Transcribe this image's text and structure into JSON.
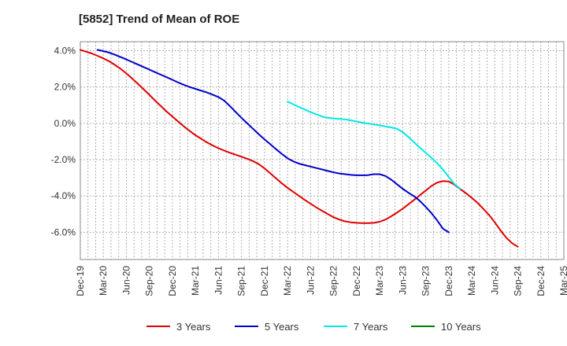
{
  "chart_data": {
    "type": "line",
    "title": "[5852]  Trend of Mean of ROE",
    "xlabel": "",
    "ylabel": "",
    "x_tick_labels": [
      "Dec-19",
      "Mar-20",
      "Jun-20",
      "Sep-20",
      "Dec-20",
      "Mar-21",
      "Jun-21",
      "Sep-21",
      "Dec-21",
      "Mar-22",
      "Jun-22",
      "Sep-22",
      "Dec-22",
      "Mar-23",
      "Jun-23",
      "Sep-23",
      "Dec-23",
      "Mar-24",
      "Jun-24",
      "Sep-24",
      "Dec-24",
      "Mar-25"
    ],
    "y_tick_labels": [
      "4.0%",
      "2.0%",
      "0.0%",
      "-2.0%",
      "-4.0%",
      "-6.0%"
    ],
    "y_tick_values": [
      4,
      2,
      0,
      -2,
      -4,
      -6
    ],
    "ylim": [
      -7.5,
      4.5
    ],
    "grid": true,
    "legend_position": "bottom",
    "series": [
      {
        "name": "3 Years",
        "color": "#e00000",
        "values": [
          4.05,
          3.95,
          3.85,
          3.72,
          3.58,
          3.42,
          3.22,
          3.0,
          2.75,
          2.47,
          2.18,
          1.88,
          1.57,
          1.25,
          0.95,
          0.65,
          0.37,
          0.1,
          -0.17,
          -0.42,
          -0.65,
          -0.85,
          -1.05,
          -1.22,
          -1.37,
          -1.5,
          -1.62,
          -1.73,
          -1.84,
          -1.95,
          -2.08,
          -2.25,
          -2.48,
          -2.75,
          -3.03,
          -3.3,
          -3.55,
          -3.78,
          -4.0,
          -4.22,
          -4.43,
          -4.63,
          -4.82,
          -5.0,
          -5.17,
          -5.3,
          -5.4,
          -5.45,
          -5.48,
          -5.5,
          -5.5,
          -5.48,
          -5.42,
          -5.3,
          -5.12,
          -4.92,
          -4.7,
          -4.46,
          -4.21,
          -3.95,
          -3.7,
          -3.45,
          -3.26,
          -3.18,
          -3.2,
          -3.38,
          -3.62,
          -3.85,
          -4.1,
          -4.38,
          -4.7,
          -5.05,
          -5.45,
          -5.9,
          -6.3,
          -6.6,
          -6.8
        ]
      },
      {
        "name": "5 Years",
        "color": "#0000cc",
        "values": [
          null,
          null,
          null,
          4.05,
          3.98,
          3.9,
          3.78,
          3.65,
          3.52,
          3.38,
          3.24,
          3.1,
          2.96,
          2.82,
          2.68,
          2.54,
          2.4,
          2.25,
          2.12,
          2.0,
          1.9,
          1.8,
          1.7,
          1.58,
          1.45,
          1.25,
          0.95,
          0.62,
          0.3,
          0.0,
          -0.3,
          -0.6,
          -0.88,
          -1.15,
          -1.42,
          -1.68,
          -1.92,
          -2.1,
          -2.22,
          -2.3,
          -2.38,
          -2.46,
          -2.54,
          -2.62,
          -2.7,
          -2.76,
          -2.8,
          -2.84,
          -2.86,
          -2.86,
          -2.85,
          -2.8,
          -2.8,
          -2.9,
          -3.1,
          -3.35,
          -3.6,
          -3.82,
          -4.02,
          -4.28,
          -4.6,
          -4.95,
          -5.35,
          -5.8,
          -6.0
        ]
      },
      {
        "name": "7 Years",
        "color": "#00e8e8",
        "values": [
          null,
          null,
          null,
          null,
          null,
          null,
          null,
          null,
          null,
          null,
          null,
          null,
          null,
          null,
          null,
          null,
          null,
          null,
          null,
          null,
          null,
          null,
          null,
          null,
          null,
          null,
          null,
          null,
          null,
          null,
          null,
          null,
          null,
          null,
          null,
          null,
          1.2,
          1.05,
          0.9,
          0.76,
          0.62,
          0.5,
          0.38,
          0.3,
          0.27,
          0.25,
          0.22,
          0.17,
          0.1,
          0.04,
          -0.01,
          -0.06,
          -0.11,
          -0.17,
          -0.22,
          -0.3,
          -0.48,
          -0.75,
          -1.05,
          -1.35,
          -1.62,
          -1.9,
          -2.2,
          -2.55,
          -2.95,
          -3.35,
          -3.6
        ]
      },
      {
        "name": "10 Years",
        "color": "#008000",
        "values": []
      }
    ]
  }
}
